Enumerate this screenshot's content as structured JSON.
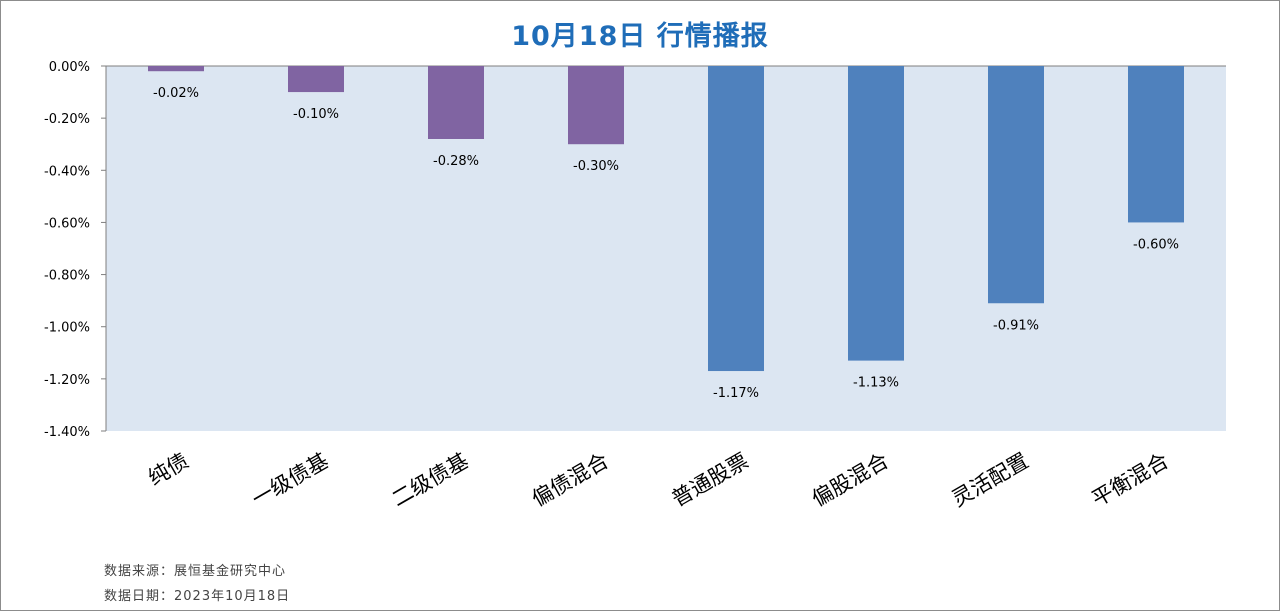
{
  "chart_data": {
    "type": "bar",
    "title": "10月18日  行情播报",
    "categories": [
      "纯债",
      "一级债基",
      "二级债基",
      "偏债混合",
      "普通股票",
      "偏股混合",
      "灵活配置",
      "平衡混合"
    ],
    "values": [
      -0.02,
      -0.1,
      -0.28,
      -0.3,
      -1.17,
      -1.13,
      -0.91,
      -0.6
    ],
    "value_labels": [
      "-0.02%",
      "-0.10%",
      "-0.28%",
      "-0.30%",
      "-1.17%",
      "-1.13%",
      "-0.91%",
      "-0.60%"
    ],
    "bar_colors": [
      "#8064a2",
      "#8064a2",
      "#8064a2",
      "#8064a2",
      "#4f81bd",
      "#4f81bd",
      "#4f81bd",
      "#4f81bd"
    ],
    "ylim": [
      -1.4,
      0.0
    ],
    "yticks": [
      0.0,
      -0.2,
      -0.4,
      -0.6,
      -0.8,
      -1.0,
      -1.2,
      -1.4
    ],
    "ytick_labels": [
      "0.00%",
      "-0.20%",
      "-0.40%",
      "-0.60%",
      "-0.80%",
      "-1.00%",
      "-1.20%",
      "-1.40%"
    ],
    "xlabel": "",
    "ylabel": "",
    "grid": false,
    "legend": "none",
    "plot_background": "#dce6f2"
  },
  "footer": {
    "source": "数据来源：展恒基金研究中心",
    "date": "数据日期：2023年10月18日"
  },
  "colors": {
    "title": "#1f6db8",
    "bond_series": "#8064a2",
    "equity_series": "#4f81bd"
  }
}
